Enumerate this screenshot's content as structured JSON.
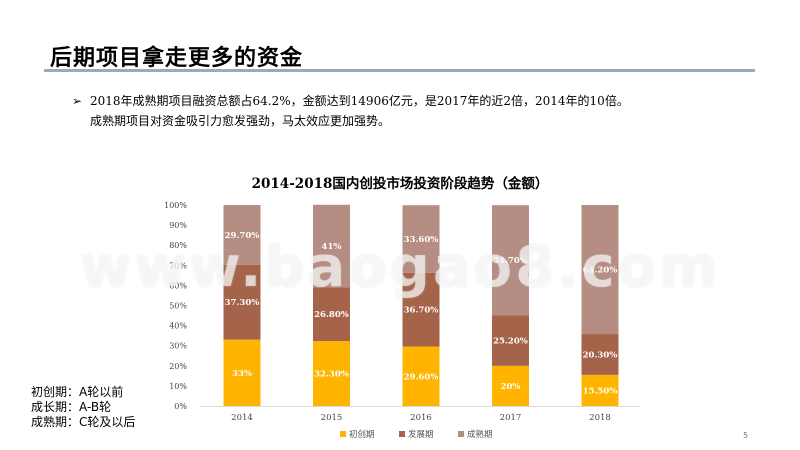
{
  "slide": {
    "title": "后期项目拿走更多的资金",
    "bullet_marker": "➢",
    "bullet_line1": "2018年成熟期项目融资总额占64.2%，金额达到14906亿元，是2017年的近2倍，2014年的10倍。",
    "bullet_line2": "成熟期项目对资金吸引力愈发强劲，马太效应更加强势。",
    "stage_definitions": [
      "初创期：A轮以前",
      "成长期：A-B轮",
      "成熟期：C轮及以后"
    ],
    "page_number": "5",
    "watermark": "www.baogao8.com"
  },
  "chart_data": {
    "type": "bar",
    "stacked": "percent",
    "title": "2014-2018国内创投市场投资阶段趋势（金额）",
    "categories": [
      "2014",
      "2015",
      "2016",
      "2017",
      "2018"
    ],
    "series": [
      {
        "name": "初创期",
        "color": "#ffb400",
        "values": [
          33,
          32.3,
          29.6,
          20,
          15.5
        ],
        "labels": [
          "33%",
          "32.30%",
          "29.60%",
          "20%",
          "15.50%"
        ]
      },
      {
        "name": "发展期",
        "color": "#a56449",
        "values": [
          37.3,
          26.8,
          36.7,
          25.2,
          20.3
        ],
        "labels": [
          "37.30%",
          "26.80%",
          "36.70%",
          "25.20%",
          "20.30%"
        ]
      },
      {
        "name": "成熟期",
        "color": "#b58d83",
        "values": [
          29.7,
          41,
          33.6,
          54.7,
          64.2
        ],
        "labels": [
          "29.70%",
          "41%",
          "33.60%",
          "54.70%",
          "64.20%"
        ]
      }
    ],
    "yticks": [
      "0%",
      "10%",
      "20%",
      "30%",
      "40%",
      "50%",
      "60%",
      "70%",
      "80%",
      "90%",
      "100%"
    ],
    "ylim": [
      0,
      100
    ],
    "legend_position": "bottom",
    "grid": false
  }
}
